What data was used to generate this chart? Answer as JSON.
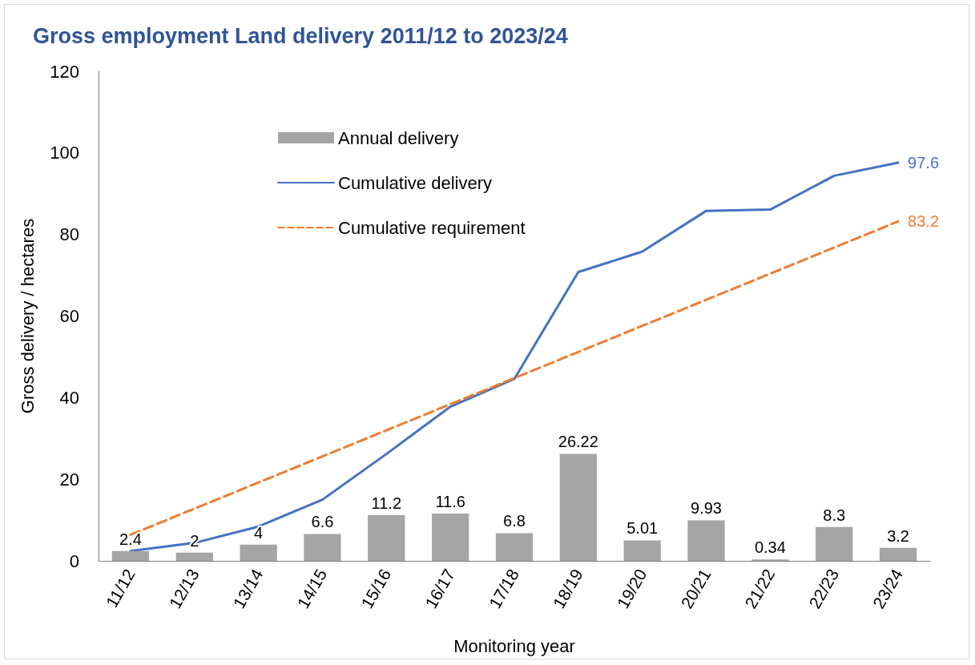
{
  "chart_data": {
    "type": "bar",
    "title": "Gross employment Land delivery 2011/12 to 2023/24",
    "xlabel": "Monitoring year",
    "ylabel": "Gross delivery / hectares",
    "categories": [
      "11/12",
      "12/13",
      "13/14",
      "14/15",
      "15/16",
      "16/17",
      "17/18",
      "18/19",
      "19/20",
      "20/21",
      "21/22",
      "22/23",
      "23/24"
    ],
    "series": [
      {
        "name": "Annual delivery",
        "color": "#a5a5a5",
        "values": [
          2.4,
          2,
          4,
          6.6,
          11.2,
          11.6,
          6.8,
          26.22,
          5.01,
          9.93,
          0.34,
          8.3,
          3.2
        ],
        "value_labels": [
          "2.4",
          "2",
          "4",
          "6.6",
          "11.2",
          "11.6",
          "6.8",
          "26.22",
          "5.01",
          "9.93",
          "0.34",
          "8.3",
          "3.2"
        ]
      },
      {
        "name": "Cumulative delivery",
        "type": "line",
        "color": "#4472c4",
        "line_style": "solid",
        "values": [
          2.4,
          4.4,
          8.4,
          15,
          26.2,
          37.8,
          44.6,
          70.8,
          75.8,
          85.8,
          86.1,
          94.4,
          97.6
        ],
        "value_labels": [
          null,
          null,
          null,
          null,
          null,
          null,
          null,
          null,
          null,
          null,
          null,
          null,
          "97.6"
        ]
      },
      {
        "name": "Cumulative requirement",
        "type": "line",
        "color": "#ed7d31",
        "line_style": "dashed",
        "values": [
          6.4,
          12.8,
          19.2,
          25.6,
          32,
          38.4,
          44.8,
          51.2,
          57.6,
          64,
          70.4,
          76.8,
          83.2
        ],
        "value_labels": [
          null,
          null,
          null,
          null,
          null,
          null,
          null,
          null,
          null,
          null,
          null,
          null,
          "83.2"
        ]
      }
    ],
    "ylim": [
      0,
      120
    ],
    "yticks": [
      0,
      20,
      40,
      60,
      80,
      100,
      120
    ],
    "grid": false,
    "legend": "top left",
    "marker": "none"
  }
}
